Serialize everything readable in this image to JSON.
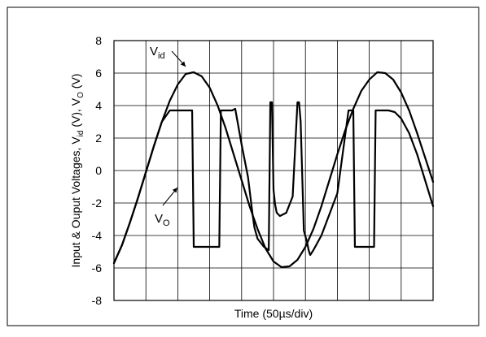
{
  "chart_data": {
    "type": "line",
    "xlabel": "Time (50µs/div)",
    "ylabel_parts": {
      "prefix": "Input & Ouput Voltages, V",
      "sub1": "id",
      "mid": " (V), V",
      "sub2": "O",
      "suffix": " (V)"
    },
    "ylim": [
      -8,
      8
    ],
    "yticks": [
      "8",
      "6",
      "4",
      "2",
      "0",
      "-2",
      "-4",
      "-6",
      "-8"
    ],
    "xlim": [
      0,
      10
    ],
    "x_divisions": 10,
    "grid": true,
    "series": [
      {
        "name": "Vid",
        "label_main": "V",
        "label_sub": "id",
        "color": "#000000",
        "x": [
          0,
          0.25,
          0.5,
          0.75,
          1.0,
          1.25,
          1.5,
          1.75,
          2.0,
          2.25,
          2.5,
          2.75,
          3.0,
          3.25,
          3.5,
          3.75,
          4.0,
          4.25,
          4.5,
          4.75,
          5.0,
          5.25,
          5.5,
          5.75,
          6.0,
          6.25,
          6.5,
          6.75,
          7.0,
          7.25,
          7.5,
          7.75,
          8.0,
          8.25,
          8.5,
          8.75,
          9.0,
          9.25,
          9.5,
          9.75,
          10.0
        ],
        "y": [
          -5.7,
          -4.6,
          -3.2,
          -1.7,
          -0.1,
          1.5,
          3.0,
          4.3,
          5.3,
          5.95,
          6.05,
          5.8,
          5.1,
          4.0,
          2.6,
          1.0,
          -0.6,
          -2.2,
          -3.6,
          -4.8,
          -5.6,
          -5.95,
          -5.9,
          -5.5,
          -4.7,
          -3.6,
          -2.2,
          -0.6,
          1.0,
          2.5,
          3.8,
          4.9,
          5.6,
          6.05,
          6.0,
          5.6,
          4.8,
          3.7,
          2.3,
          0.8,
          -0.7
        ]
      },
      {
        "name": "Vo",
        "label_main": "V",
        "label_sub": "O",
        "color": "#000000",
        "x": [
          0,
          0.25,
          0.5,
          0.75,
          1.0,
          1.25,
          1.5,
          1.75,
          1.9,
          2.0,
          2.1,
          2.45,
          2.5,
          2.55,
          3.3,
          3.35,
          3.4,
          3.5,
          3.6,
          3.7,
          3.8,
          4.0,
          4.2,
          4.3,
          4.35,
          4.4,
          4.5,
          4.7,
          4.85,
          4.9,
          4.95,
          5.0,
          5.05,
          5.1,
          5.2,
          5.4,
          5.6,
          5.75,
          5.8,
          5.85,
          5.95,
          6.05,
          6.1,
          6.15,
          6.25,
          6.5,
          7.0,
          7.35,
          7.5,
          7.55,
          8.15,
          8.2,
          8.25,
          8.4,
          8.6,
          8.8,
          9.0,
          9.25,
          9.5,
          9.75,
          10.0
        ],
        "y": [
          -5.7,
          -4.6,
          -3.2,
          -1.7,
          -0.1,
          1.5,
          3.0,
          3.7,
          3.7,
          3.7,
          3.7,
          3.7,
          -4.7,
          -4.7,
          -4.7,
          3.7,
          3.7,
          3.7,
          3.7,
          3.7,
          3.8,
          1.6,
          -0.4,
          -2.0,
          -2.8,
          -3.5,
          -4.2,
          -4.7,
          -4.9,
          4.2,
          4.2,
          -1.2,
          -2.1,
          -2.6,
          -2.8,
          -2.6,
          -1.6,
          4.2,
          4.2,
          3.0,
          -3.7,
          -4.4,
          -4.9,
          -5.2,
          -4.9,
          -4.0,
          -1.4,
          3.7,
          3.7,
          -4.7,
          -4.7,
          3.7,
          3.7,
          3.7,
          3.7,
          3.6,
          3.2,
          2.3,
          1.0,
          -0.6,
          -2.2
        ]
      }
    ]
  }
}
